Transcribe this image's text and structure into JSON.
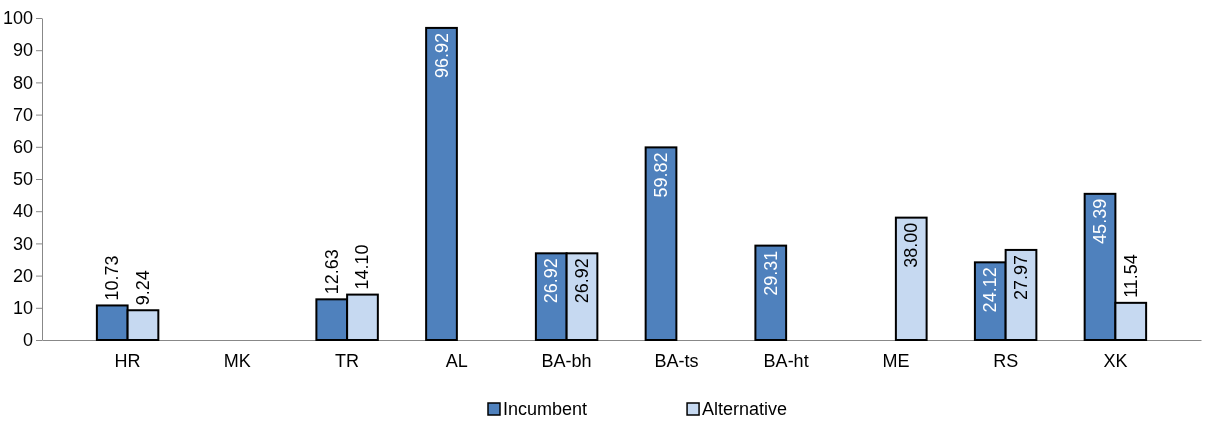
{
  "chart_data": {
    "type": "bar",
    "categories": [
      "HR",
      "MK",
      "TR",
      "AL",
      "BA-bh",
      "BA-ts",
      "BA-ht",
      "ME",
      "RS",
      "XK"
    ],
    "series": [
      {
        "name": "Incumbent",
        "color": "#4f81bd",
        "values": [
          10.73,
          null,
          12.63,
          96.92,
          26.92,
          59.82,
          29.31,
          null,
          24.12,
          45.39
        ],
        "value_labels": [
          "10.73",
          null,
          "12.63",
          "96.92",
          "26.92",
          "59.82",
          "29.31",
          null,
          "24.12",
          "45.39"
        ]
      },
      {
        "name": "Alternative",
        "color": "#c6d9f1",
        "values": [
          9.24,
          null,
          14.1,
          null,
          26.92,
          null,
          null,
          38.0,
          27.97,
          11.54
        ],
        "value_labels": [
          "9.24",
          null,
          "14.10",
          null,
          "26.92",
          null,
          null,
          "38.00",
          "27.97",
          "11.54"
        ]
      }
    ],
    "ylim": [
      0,
      100
    ],
    "yticks": [
      0,
      10,
      20,
      30,
      40,
      50,
      60,
      70,
      80,
      90,
      100
    ],
    "legend": "bottom",
    "grid": false
  }
}
